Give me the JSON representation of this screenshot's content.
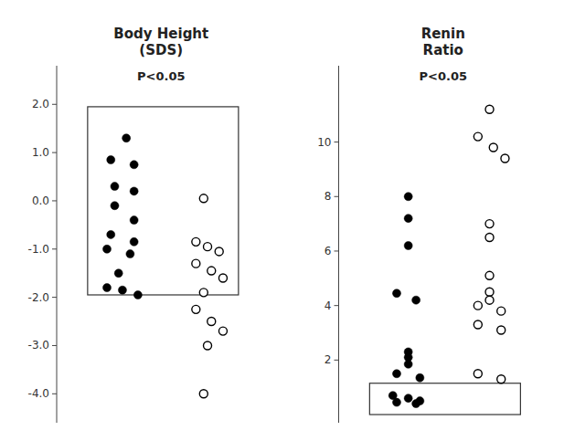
{
  "chart_data": [
    {
      "type": "scatter",
      "title": "Body Height\n(SDS)",
      "annotation": "P<0.05",
      "series": [
        {
          "marker": "circle",
          "color": "black",
          "x": [
            1.1,
            0.9,
            1.2,
            0.95,
            1.2,
            0.95,
            1.2,
            0.9,
            1.2,
            0.85,
            1.15,
            1.0,
            0.85,
            1.05,
            1.25
          ],
          "values": [
            1.3,
            0.85,
            0.75,
            0.3,
            0.2,
            -0.1,
            -0.4,
            -0.7,
            -0.85,
            -1.0,
            -1.1,
            -1.5,
            -1.8,
            -1.85,
            -1.95
          ]
        },
        {
          "marker": "circle-open",
          "color": "black",
          "x": [
            2.1,
            2.0,
            2.15,
            2.3,
            2.0,
            2.2,
            2.35,
            2.1,
            2.0,
            2.2,
            2.35,
            2.15,
            2.1
          ],
          "values": [
            0.05,
            -0.85,
            -0.95,
            -1.05,
            -1.3,
            -1.45,
            -1.6,
            -1.9,
            -2.25,
            -2.5,
            -2.7,
            -3.0,
            -4.0
          ]
        }
      ],
      "box": {
        "x": 0.6,
        "y": -1.95,
        "width": 1.95,
        "height": 3.9
      },
      "xlim": [
        0.2,
        2.9
      ],
      "ylim": [
        -4.6,
        2.8
      ],
      "yticks": [
        {
          "value": 2.0,
          "label": "2.0"
        },
        {
          "value": 1.0,
          "label": "1.0"
        },
        {
          "value": 0.0,
          "label": "0.0"
        },
        {
          "value": -1.0,
          "label": "-1.0"
        },
        {
          "value": -2.0,
          "label": "-2.0"
        },
        {
          "value": -3.0,
          "label": "-3.0"
        },
        {
          "value": -4.0,
          "label": "-4.0"
        }
      ],
      "tick_labels": "y",
      "grid": false
    },
    {
      "type": "scatter",
      "title": "Renin\nRatio",
      "annotation": "P<0.05",
      "series": [
        {
          "marker": "circle",
          "color": "black",
          "x": [
            1.1,
            1.1,
            1.1,
            0.95,
            1.2,
            1.1,
            1.1,
            1.1,
            0.95,
            1.25,
            0.9,
            1.1,
            1.25,
            0.95,
            1.2
          ],
          "values": [
            8.0,
            7.2,
            6.2,
            4.45,
            4.2,
            2.3,
            2.1,
            1.85,
            1.5,
            1.35,
            0.7,
            0.6,
            0.5,
            0.45,
            0.4
          ]
        },
        {
          "marker": "circle-open",
          "color": "black",
          "x": [
            2.15,
            2.0,
            2.2,
            2.35,
            2.15,
            2.15,
            2.15,
            2.15,
            2.15,
            2.0,
            2.3,
            2.0,
            2.3,
            2.0,
            2.3
          ],
          "values": [
            11.2,
            10.2,
            9.8,
            9.4,
            7.0,
            6.5,
            5.1,
            4.5,
            4.2,
            4.0,
            3.8,
            3.3,
            3.1,
            1.5,
            1.3
          ]
        }
      ],
      "box": {
        "x": 0.6,
        "y": 0.0,
        "width": 1.95,
        "height": 1.15
      },
      "xlim": [
        0.2,
        2.9
      ],
      "ylim": [
        -0.3,
        12.8
      ],
      "yticks": [
        2,
        4,
        6,
        8,
        10
      ],
      "tick_labels": "y",
      "grid": false
    }
  ]
}
